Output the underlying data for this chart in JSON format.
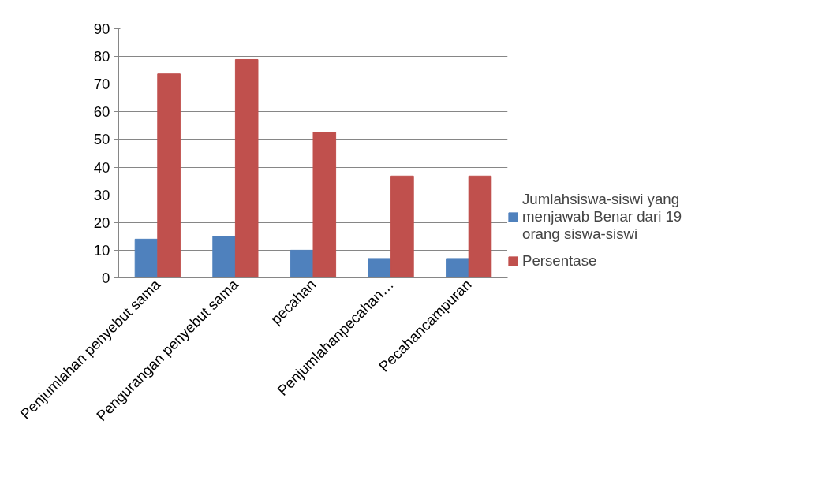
{
  "chart_data": {
    "type": "bar",
    "categories": [
      "Penjumlahan penyebut sama",
      "Pengurangan penyebut sama",
      "pecahan",
      "Penjumlahanpecahan…",
      "Pecahancampuran"
    ],
    "series": [
      {
        "name": "Jumlahsiswa-siswi yang menjawab Benar dari 19 orang siswa-siswi",
        "color": "#4f81bd",
        "values": [
          14,
          15,
          10,
          7,
          7
        ]
      },
      {
        "name": "Persentase",
        "color": "#c0504d",
        "values": [
          73.7,
          78.9,
          52.6,
          36.8,
          36.8
        ]
      }
    ],
    "ylim": [
      0,
      90
    ],
    "yticks": [
      0,
      10,
      20,
      30,
      40,
      50,
      60,
      70,
      80,
      90
    ],
    "grid": "y",
    "legend": "right"
  }
}
